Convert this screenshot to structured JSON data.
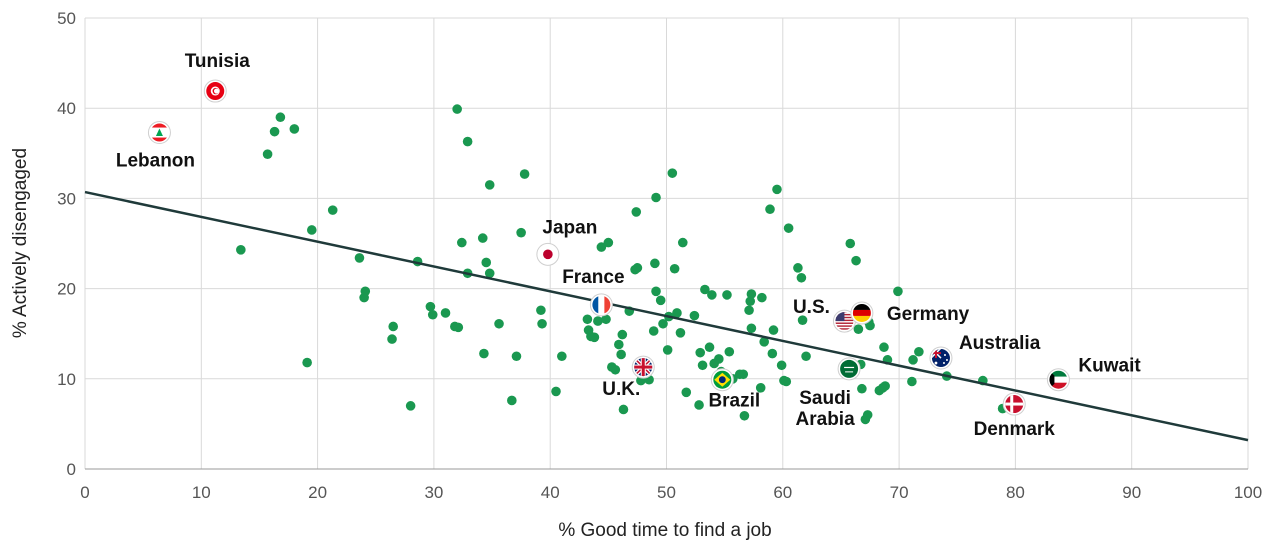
{
  "chart_data": {
    "type": "scatter",
    "title": "",
    "xlabel": "% Good time to find a job",
    "ylabel": "% Actively disengaged",
    "xlim": [
      0,
      100
    ],
    "ylim": [
      0,
      50
    ],
    "xticks": [
      "0",
      "10",
      "20",
      "30",
      "40",
      "50",
      "60",
      "70",
      "80",
      "90",
      "100"
    ],
    "yticks": [
      "0",
      "10",
      "20",
      "30",
      "40",
      "50"
    ],
    "grid": true,
    "point_color": "#1a9850",
    "trendline_color": "#1f3a3a",
    "trendline": {
      "x": [
        0,
        100
      ],
      "y": [
        30.7,
        3.2
      ]
    },
    "points": [
      [
        13.4,
        24.3
      ],
      [
        15.7,
        34.9
      ],
      [
        16.3,
        37.4
      ],
      [
        16.8,
        39.0
      ],
      [
        18.0,
        37.7
      ],
      [
        19.1,
        11.8
      ],
      [
        19.5,
        26.5
      ],
      [
        21.3,
        28.7
      ],
      [
        23.6,
        23.4
      ],
      [
        24.0,
        19.0
      ],
      [
        24.1,
        19.7
      ],
      [
        26.4,
        14.4
      ],
      [
        26.5,
        15.8
      ],
      [
        28.0,
        7.0
      ],
      [
        28.6,
        23.0
      ],
      [
        29.7,
        18.0
      ],
      [
        29.9,
        17.1
      ],
      [
        31.0,
        17.3
      ],
      [
        31.8,
        15.8
      ],
      [
        32.1,
        15.7
      ],
      [
        32.0,
        39.9
      ],
      [
        32.4,
        25.1
      ],
      [
        32.9,
        36.3
      ],
      [
        32.9,
        21.7
      ],
      [
        34.2,
        25.6
      ],
      [
        34.3,
        12.8
      ],
      [
        34.5,
        22.9
      ],
      [
        34.8,
        31.5
      ],
      [
        34.8,
        21.7
      ],
      [
        35.6,
        16.1
      ],
      [
        36.7,
        7.6
      ],
      [
        37.1,
        12.5
      ],
      [
        37.5,
        26.2
      ],
      [
        37.8,
        32.7
      ],
      [
        39.2,
        17.6
      ],
      [
        39.3,
        16.1
      ],
      [
        40.5,
        8.6
      ],
      [
        41.0,
        12.5
      ],
      [
        43.2,
        16.6
      ],
      [
        43.3,
        15.4
      ],
      [
        43.5,
        14.7
      ],
      [
        43.8,
        14.6
      ],
      [
        44.1,
        16.4
      ],
      [
        44.4,
        24.6
      ],
      [
        44.8,
        16.6
      ],
      [
        45.0,
        25.1
      ],
      [
        45.3,
        11.3
      ],
      [
        45.6,
        11.0
      ],
      [
        45.9,
        13.8
      ],
      [
        46.1,
        12.7
      ],
      [
        46.2,
        14.9
      ],
      [
        46.3,
        6.6
      ],
      [
        46.8,
        17.5
      ],
      [
        47.3,
        22.1
      ],
      [
        47.4,
        28.5
      ],
      [
        47.5,
        22.3
      ],
      [
        47.8,
        9.8
      ],
      [
        48.1,
        10.2
      ],
      [
        48.5,
        9.9
      ],
      [
        48.9,
        15.3
      ],
      [
        49.0,
        22.8
      ],
      [
        49.1,
        19.7
      ],
      [
        49.1,
        30.1
      ],
      [
        49.5,
        18.7
      ],
      [
        49.7,
        16.1
      ],
      [
        50.1,
        13.2
      ],
      [
        50.2,
        16.9
      ],
      [
        50.5,
        32.8
      ],
      [
        50.7,
        22.2
      ],
      [
        50.9,
        17.3
      ],
      [
        51.2,
        15.1
      ],
      [
        51.4,
        25.1
      ],
      [
        51.7,
        8.5
      ],
      [
        52.4,
        17.0
      ],
      [
        52.8,
        7.1
      ],
      [
        52.9,
        12.9
      ],
      [
        53.1,
        11.5
      ],
      [
        53.3,
        19.9
      ],
      [
        53.7,
        13.5
      ],
      [
        53.9,
        19.3
      ],
      [
        54.1,
        11.7
      ],
      [
        54.5,
        12.2
      ],
      [
        54.7,
        10.8
      ],
      [
        54.9,
        9.6
      ],
      [
        55.2,
        19.3
      ],
      [
        55.4,
        13.0
      ],
      [
        55.7,
        10.0
      ],
      [
        56.3,
        10.5
      ],
      [
        56.6,
        10.5
      ],
      [
        56.7,
        5.9
      ],
      [
        57.1,
        17.6
      ],
      [
        57.2,
        18.6
      ],
      [
        57.3,
        15.6
      ],
      [
        57.3,
        19.4
      ],
      [
        58.1,
        9.0
      ],
      [
        58.2,
        19.0
      ],
      [
        58.4,
        14.1
      ],
      [
        58.9,
        28.8
      ],
      [
        59.1,
        12.8
      ],
      [
        59.2,
        15.4
      ],
      [
        59.5,
        31.0
      ],
      [
        59.9,
        11.5
      ],
      [
        60.1,
        9.8
      ],
      [
        60.3,
        9.7
      ],
      [
        60.5,
        26.7
      ],
      [
        61.3,
        22.3
      ],
      [
        61.6,
        21.2
      ],
      [
        61.7,
        16.5
      ],
      [
        62.0,
        12.5
      ],
      [
        65.8,
        25.0
      ],
      [
        66.3,
        23.1
      ],
      [
        66.5,
        15.5
      ],
      [
        66.7,
        11.6
      ],
      [
        66.8,
        8.9
      ],
      [
        67.1,
        5.5
      ],
      [
        67.3,
        6.0
      ],
      [
        67.4,
        16.3
      ],
      [
        67.5,
        15.9
      ],
      [
        68.3,
        8.7
      ],
      [
        68.6,
        9.0
      ],
      [
        68.7,
        13.5
      ],
      [
        68.8,
        9.2
      ],
      [
        69.0,
        12.1
      ],
      [
        69.9,
        19.7
      ],
      [
        71.1,
        9.7
      ],
      [
        71.2,
        12.1
      ],
      [
        71.7,
        13.0
      ],
      [
        74.1,
        10.3
      ],
      [
        77.2,
        9.8
      ],
      [
        78.9,
        6.7
      ]
    ],
    "labeled_points": [
      {
        "name": "Tunisia",
        "x": 11.2,
        "y": 41.9,
        "flag": "tunisia-flag"
      },
      {
        "name": "Lebanon",
        "x": 6.4,
        "y": 37.3,
        "flag": "lebanon-flag"
      },
      {
        "name": "Japan",
        "x": 39.8,
        "y": 23.8,
        "flag": "japan-flag"
      },
      {
        "name": "France",
        "x": 44.4,
        "y": 18.2,
        "flag": "france-flag"
      },
      {
        "name": "U.K.",
        "x": 48.0,
        "y": 11.3,
        "flag": "uk-flag"
      },
      {
        "name": "Brazil",
        "x": 54.8,
        "y": 9.9,
        "flag": "brazil-flag"
      },
      {
        "name": "U.S.",
        "x": 65.3,
        "y": 16.4,
        "flag": "us-flag"
      },
      {
        "name": "Germany",
        "x": 66.8,
        "y": 17.3,
        "flag": "germany-flag"
      },
      {
        "name": "Saudi Arabia",
        "x": 65.7,
        "y": 11.1,
        "flag": "saudi-arabia-flag"
      },
      {
        "name": "Australia",
        "x": 73.6,
        "y": 12.3,
        "flag": "australia-flag"
      },
      {
        "name": "Kuwait",
        "x": 83.7,
        "y": 9.9,
        "flag": "kuwait-flag"
      },
      {
        "name": "Denmark",
        "x": 79.9,
        "y": 7.2,
        "flag": "denmark-flag"
      }
    ]
  }
}
